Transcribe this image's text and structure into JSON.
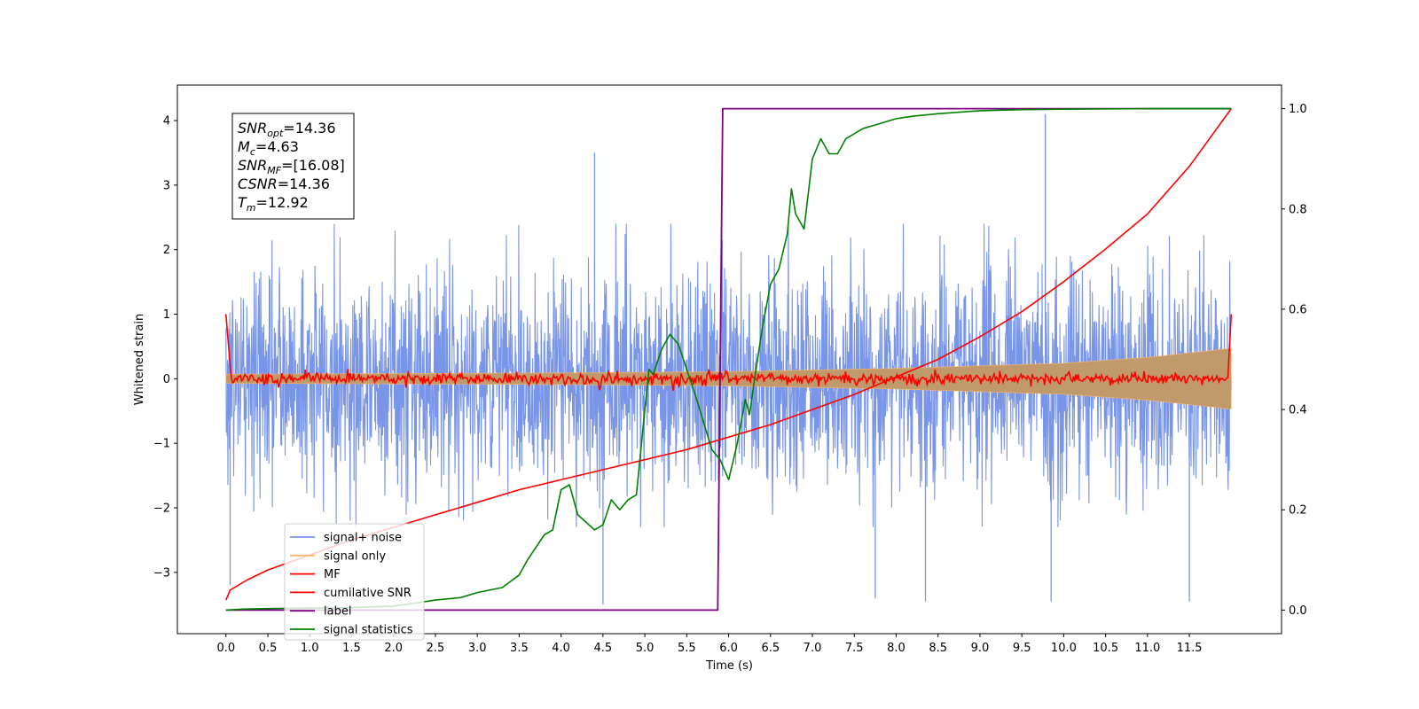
{
  "chart_data": {
    "type": "line",
    "xlabel": "Time (s)",
    "ylabel": "Whitened strain",
    "xlim": [
      -0.58,
      12.6
    ],
    "ylim": [
      -3.95,
      4.55
    ],
    "y2lim": [
      -0.047,
      1.047
    ],
    "xticks": [
      0.0,
      0.5,
      1.0,
      1.5,
      2.0,
      2.5,
      3.0,
      3.5,
      4.0,
      4.5,
      5.0,
      5.5,
      6.0,
      6.5,
      7.0,
      7.5,
      8.0,
      8.5,
      9.0,
      9.5,
      10.0,
      10.5,
      11.0,
      11.5
    ],
    "xtick_labels": [
      "0.0",
      "0.5",
      "1.0",
      "1.5",
      "2.0",
      "2.5",
      "3.0",
      "3.5",
      "4.0",
      "4.5",
      "5.0",
      "5.5",
      "6.0",
      "6.5",
      "7.0",
      "7.5",
      "8.0",
      "8.5",
      "9.0",
      "9.5",
      "10.0",
      "10.5",
      "11.0",
      "11.5"
    ],
    "yticks": [
      -3,
      -2,
      -1,
      0,
      1,
      2,
      3,
      4
    ],
    "ytick_labels": [
      "−3",
      "−2",
      "−1",
      "0",
      "1",
      "2",
      "3",
      "4"
    ],
    "y2ticks": [
      0.0,
      0.2,
      0.4,
      0.6,
      0.8,
      1.0
    ],
    "y2tick_labels": [
      "0.0",
      "0.2",
      "0.4",
      "0.6",
      "0.8",
      "1.0"
    ],
    "colors": {
      "signal_noise": "#7895e8",
      "signal_only": "#ffb366",
      "signal_fill": "#c19a6b",
      "mf": "#ff0000",
      "cum_snr": "#ff0000",
      "label": "#800080",
      "stats": "#008000"
    },
    "legend": {
      "position": "lower-left",
      "entries": [
        "signal+ noise",
        "signal only",
        "MF",
        "cumilative SNR",
        "label",
        "signal statistics"
      ]
    },
    "annotation": [
      {
        "var": "SNR",
        "sub": "opt",
        "value": "=14.36"
      },
      {
        "var": "M",
        "sub": "c",
        "value": "=4.63"
      },
      {
        "var": "SNR",
        "sub": "MF",
        "value": "=[16.08]"
      },
      {
        "var": "CSNR",
        "sub": "",
        "value": "=14.36"
      },
      {
        "var": "T",
        "sub": "m",
        "value": "=12.92"
      }
    ],
    "series": [
      {
        "name": "signal+ noise",
        "axis": "left",
        "kind": "noise",
        "t_range": [
          0.0,
          12.0
        ],
        "amp_upper": 2.4,
        "amp_lower": -2.3,
        "notable_peaks": [
          {
            "t": 4.4,
            "v": 3.5
          },
          {
            "t": 9.78,
            "v": 4.1
          },
          {
            "t": 4.5,
            "v": -3.5
          },
          {
            "t": 7.75,
            "v": -3.4
          },
          {
            "t": 8.35,
            "v": -3.45
          },
          {
            "t": 9.85,
            "v": -3.45
          },
          {
            "t": 11.5,
            "v": -3.45
          },
          {
            "t": 0.05,
            "v": -3.2
          }
        ]
      },
      {
        "name": "signal only",
        "axis": "left",
        "kind": "envelope",
        "t": [
          0,
          2,
          4,
          6,
          8,
          10,
          11,
          12
        ],
        "envelope": [
          0.07,
          0.08,
          0.09,
          0.11,
          0.16,
          0.24,
          0.33,
          0.47
        ]
      },
      {
        "name": "MF",
        "axis": "left",
        "kind": "mf",
        "t_range": [
          0.0,
          12.0
        ],
        "edge_value": 1.0
      },
      {
        "name": "cumilative SNR",
        "axis": "right",
        "t": [
          0.0,
          0.05,
          0.25,
          0.5,
          1.0,
          1.5,
          2.0,
          2.5,
          3.0,
          3.5,
          4.0,
          4.5,
          5.0,
          5.5,
          6.0,
          6.5,
          7.0,
          7.5,
          8.0,
          8.5,
          9.0,
          9.5,
          10.0,
          10.5,
          11.0,
          11.5,
          12.0
        ],
        "values": [
          0.02,
          0.04,
          0.06,
          0.08,
          0.11,
          0.14,
          0.165,
          0.19,
          0.215,
          0.24,
          0.26,
          0.28,
          0.3,
          0.32,
          0.345,
          0.37,
          0.4,
          0.43,
          0.465,
          0.5,
          0.545,
          0.595,
          0.655,
          0.72,
          0.79,
          0.885,
          1.0
        ]
      },
      {
        "name": "label",
        "axis": "right",
        "t": [
          0.0,
          5.87,
          5.93,
          12.0
        ],
        "values": [
          0.0,
          0.0,
          1.0,
          1.0
        ]
      },
      {
        "name": "signal statistics",
        "axis": "right",
        "t": [
          0.0,
          0.2,
          0.5,
          1.0,
          1.5,
          2.0,
          2.3,
          2.5,
          2.8,
          3.0,
          3.3,
          3.5,
          3.6,
          3.8,
          3.9,
          4.0,
          4.1,
          4.2,
          4.4,
          4.5,
          4.6,
          4.7,
          4.8,
          4.9,
          5.0,
          5.05,
          5.1,
          5.2,
          5.3,
          5.4,
          5.5,
          5.6,
          5.8,
          5.9,
          6.0,
          6.1,
          6.2,
          6.25,
          6.3,
          6.4,
          6.5,
          6.6,
          6.7,
          6.75,
          6.8,
          6.9,
          7.0,
          7.1,
          7.2,
          7.3,
          7.4,
          7.5,
          7.6,
          7.7,
          7.8,
          8.0,
          8.2,
          8.5,
          9.0,
          9.5,
          10.0,
          11.0,
          12.0
        ],
        "values": [
          0.0,
          0.002,
          0.003,
          0.004,
          0.005,
          0.008,
          0.015,
          0.02,
          0.025,
          0.035,
          0.045,
          0.07,
          0.1,
          0.15,
          0.16,
          0.24,
          0.25,
          0.19,
          0.16,
          0.17,
          0.22,
          0.2,
          0.22,
          0.23,
          0.4,
          0.48,
          0.47,
          0.52,
          0.55,
          0.53,
          0.48,
          0.43,
          0.32,
          0.3,
          0.26,
          0.33,
          0.42,
          0.39,
          0.45,
          0.56,
          0.65,
          0.68,
          0.75,
          0.84,
          0.79,
          0.76,
          0.9,
          0.94,
          0.91,
          0.91,
          0.94,
          0.95,
          0.96,
          0.965,
          0.97,
          0.98,
          0.985,
          0.99,
          0.996,
          0.998,
          0.999,
          1.0,
          1.0
        ]
      }
    ]
  }
}
